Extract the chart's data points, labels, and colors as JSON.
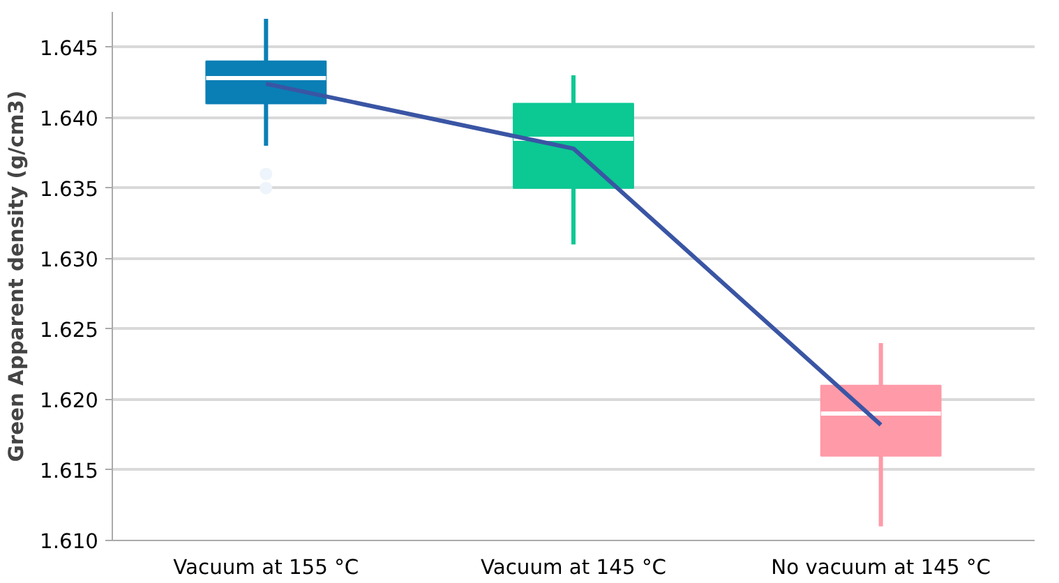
{
  "chart_data": {
    "type": "box",
    "ylabel": "Green Apparent density (g/cm3)",
    "categories": [
      "Vacuum at 155 °C",
      "Vacuum at 145 °C",
      "No vacuum at 145 °C"
    ],
    "colors": [
      "#0a7fb5",
      "#0cc893",
      "#ff9aa8"
    ],
    "boxes": [
      {
        "low": 1.638,
        "q1": 1.641,
        "median": 1.6428,
        "q3": 1.644,
        "high": 1.647,
        "outliers": [
          1.636,
          1.635
        ]
      },
      {
        "low": 1.631,
        "q1": 1.635,
        "median": 1.6385,
        "q3": 1.641,
        "high": 1.643
      },
      {
        "low": 1.611,
        "q1": 1.616,
        "median": 1.619,
        "q3": 1.621,
        "high": 1.624
      }
    ],
    "series": [
      {
        "type": "line",
        "color": "#3a55a4",
        "values": [
          1.6424,
          1.6378,
          1.6182
        ]
      }
    ],
    "ylim": [
      1.61,
      1.6475
    ],
    "yticks": [
      {
        "value": 1.61,
        "label": "1.610"
      },
      {
        "value": 1.615,
        "label": "1.615"
      },
      {
        "value": 1.62,
        "label": "1.620"
      },
      {
        "value": 1.625,
        "label": "1.625"
      },
      {
        "value": 1.63,
        "label": "1.630"
      },
      {
        "value": 1.635,
        "label": "1.635"
      },
      {
        "value": 1.64,
        "label": "1.640"
      },
      {
        "value": 1.645,
        "label": "1.645"
      }
    ],
    "grid": "y"
  }
}
